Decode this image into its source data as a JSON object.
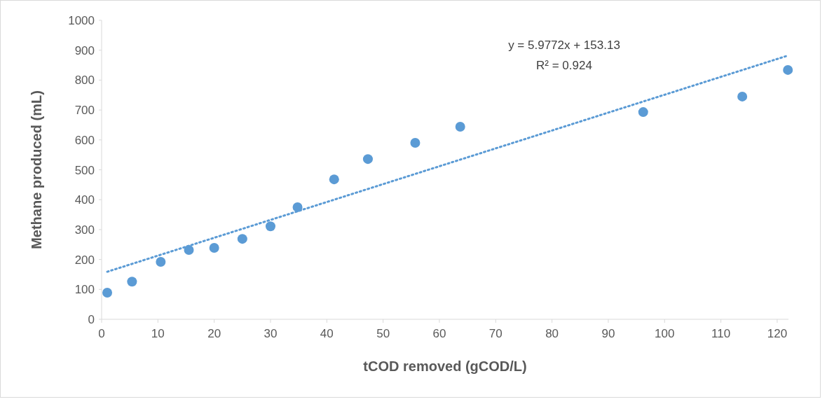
{
  "chart_data": {
    "type": "scatter",
    "xlabel": "tCOD removed (gCOD/L)",
    "ylabel": "Methane produced (mL)",
    "xlim": [
      0,
      122
    ],
    "xticks": [
      0,
      10,
      20,
      30,
      40,
      50,
      60,
      70,
      80,
      90,
      100,
      110,
      120
    ],
    "ylim": [
      0,
      1000
    ],
    "yticks": [
      0,
      100,
      200,
      300,
      400,
      500,
      600,
      700,
      800,
      900,
      1000
    ],
    "marker": "circle",
    "series": [
      {
        "type": "scatter",
        "color": "#5b9bd5",
        "x": [
          1.0,
          5.4,
          10.5,
          15.5,
          20,
          25,
          30,
          34.8,
          41.3,
          47.3,
          55.7,
          63.7,
          96.2,
          113.8,
          121.9
        ],
        "values": [
          89,
          126,
          192,
          232,
          239,
          269,
          311,
          375,
          468,
          536,
          590,
          644,
          693,
          745,
          834
        ]
      },
      {
        "type": "line",
        "color": "#5b9bd5",
        "line_style": "dotted",
        "marker": "none",
        "x": [
          1.0,
          121.9
        ],
        "values": [
          159,
          882
        ]
      }
    ],
    "annotations": [
      "y = 5.9772x + 153.13",
      "R² = 0.924"
    ]
  }
}
